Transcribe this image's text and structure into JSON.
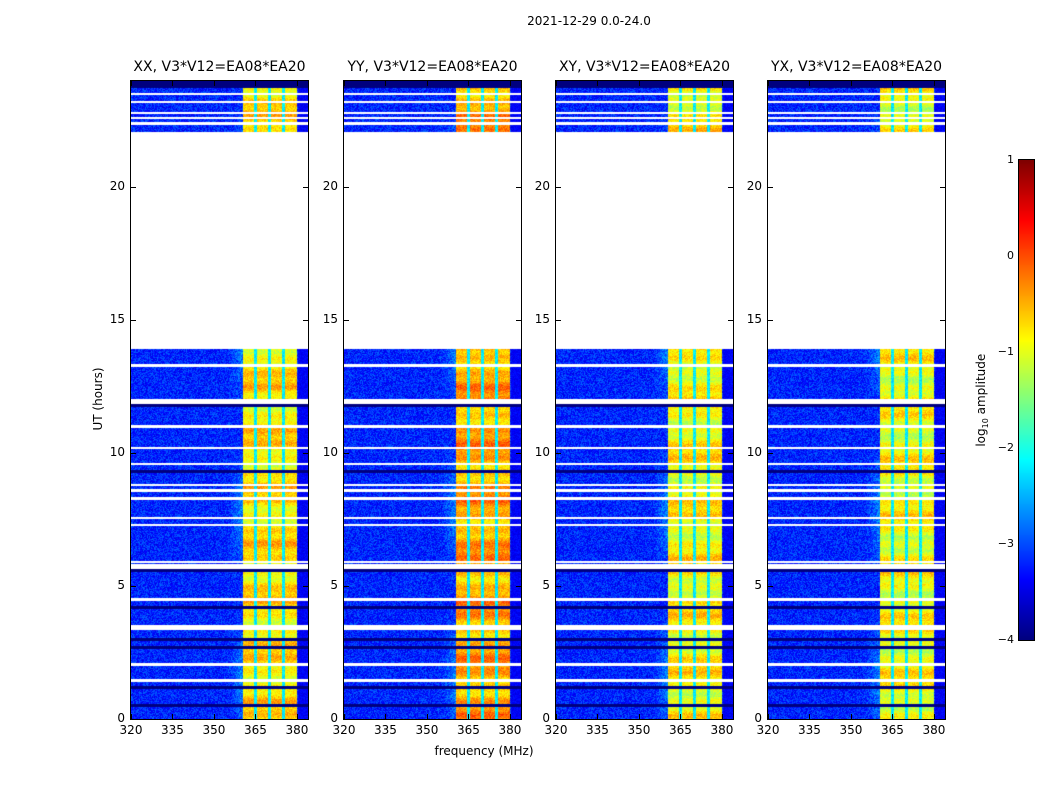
{
  "suptitle": "2021-12-29 0.0-24.0",
  "ylabel": "UT (hours)",
  "xlabel": "frequency (MHz)",
  "colorbar": {
    "label_main": "log",
    "label_sub": "10",
    "label_tail": " amplitude",
    "ticks": [
      "1",
      "0",
      "−1",
      "−2",
      "−3",
      "−4"
    ],
    "range": [
      -4,
      1
    ],
    "colormap": "jet"
  },
  "chart_data": {
    "type": "heatmap",
    "xlabel": "frequency (MHz)",
    "ylabel": "UT (hours)",
    "xlim": [
      320,
      384
    ],
    "ylim": [
      0,
      24
    ],
    "xticks": [
      "320",
      "335",
      "350",
      "365",
      "380"
    ],
    "xtick_values": [
      320,
      335,
      350,
      365,
      380
    ],
    "yticks": [
      "0",
      "5",
      "10",
      "15",
      "20"
    ],
    "ytick_values": [
      0,
      5,
      10,
      15,
      20
    ],
    "value_label": "log10 amplitude",
    "value_range": [
      -4,
      1
    ],
    "background_level": -3.2,
    "signal_band_mhz": [
      360.5,
      380
    ],
    "signal_band_gaps_mhz": [
      365,
      370,
      375
    ],
    "data_gap_hours": [
      13.9,
      22.1
    ],
    "flagged_white_hours": [
      1.45,
      2.05,
      3.4,
      3.5,
      4.5,
      5.7,
      5.8,
      5.9,
      7.3,
      7.55,
      8.3,
      8.6,
      8.8,
      9.6,
      10.2,
      11.0,
      11.9,
      12.0,
      13.3,
      22.4,
      22.6,
      22.8,
      23.2,
      23.5
    ],
    "dark_rows_hours": [
      0.5,
      1.2,
      2.7,
      3.0,
      4.2,
      5.6,
      9.3,
      11.8,
      23.9
    ],
    "panels": [
      {
        "title": "XX, V3*V12=EA08*EA20",
        "band_level": -0.75
      },
      {
        "title": "YY, V3*V12=EA08*EA20",
        "band_level": -0.45
      },
      {
        "title": "XY, V3*V12=EA08*EA20",
        "band_level": -0.85
      },
      {
        "title": "YX, V3*V12=EA08*EA20",
        "band_level": -0.9
      }
    ]
  }
}
